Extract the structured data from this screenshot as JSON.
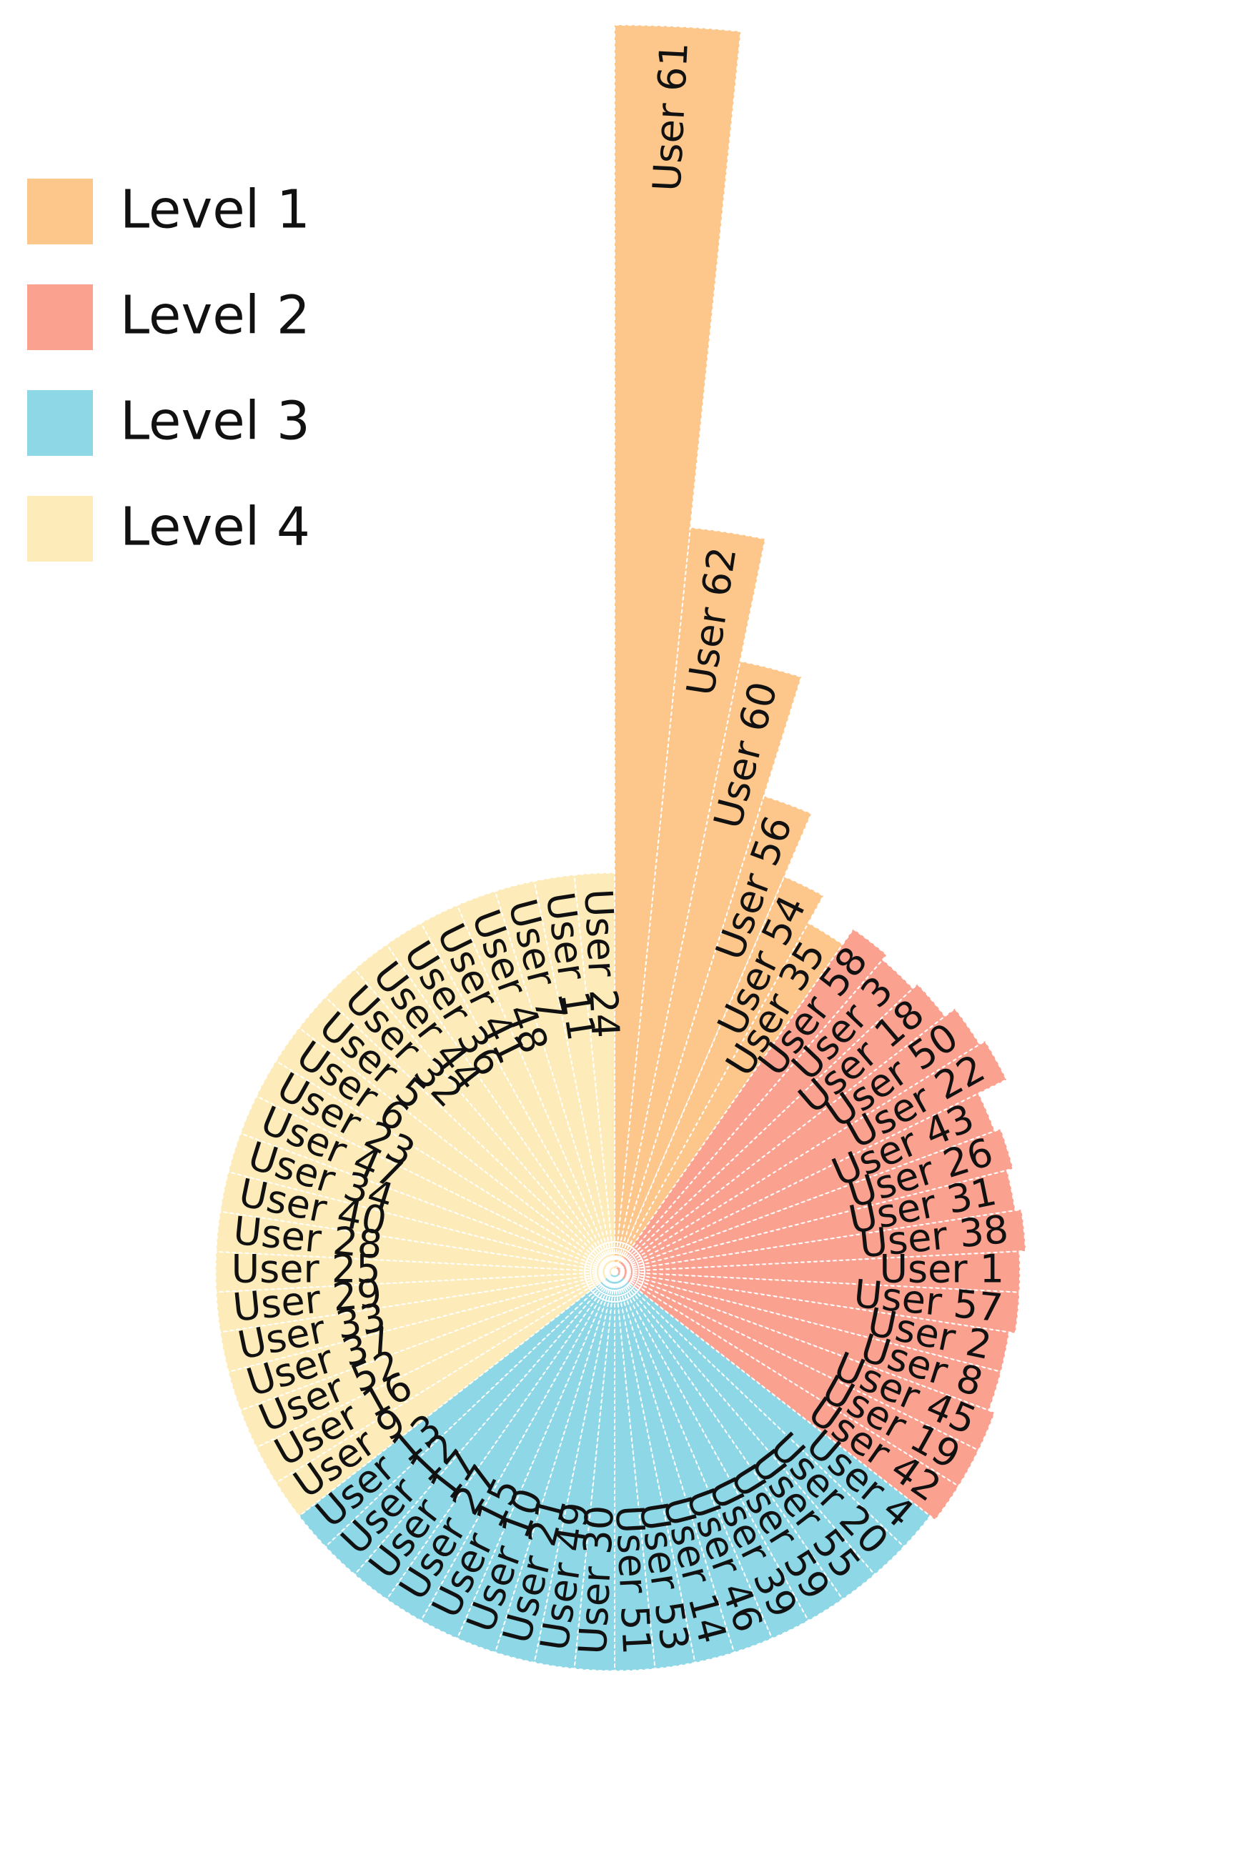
{
  "chart_data": {
    "type": "radial-bar",
    "title": "",
    "legend": {
      "placement": "top-left",
      "entries": [
        {
          "name": "Level 1",
          "color": "#FDC68A"
        },
        {
          "name": "Level 2",
          "color": "#FBA190"
        },
        {
          "name": "Level 3",
          "color": "#8DD7E6"
        },
        {
          "name": "Level 4",
          "color": "#FDECB9"
        }
      ]
    },
    "bars": [
      {
        "label": "User 61",
        "value": 1.0,
        "level": 1
      },
      {
        "label": "User 62",
        "value": 0.6,
        "level": 1
      },
      {
        "label": "User 60",
        "value": 0.5,
        "level": 1
      },
      {
        "label": "User 56",
        "value": 0.4,
        "level": 1
      },
      {
        "label": "User 54",
        "value": 0.345,
        "level": 1
      },
      {
        "label": "User 35",
        "value": 0.32,
        "level": 1
      },
      {
        "label": "User 58",
        "value": 0.335,
        "level": 2
      },
      {
        "label": "User 3",
        "value": 0.33,
        "level": 2
      },
      {
        "label": "User 18",
        "value": 0.335,
        "level": 2
      },
      {
        "label": "User 50",
        "value": 0.345,
        "level": 2
      },
      {
        "label": "User 22",
        "value": 0.35,
        "level": 2
      },
      {
        "label": "User 43",
        "value": 0.325,
        "level": 2
      },
      {
        "label": "User 26",
        "value": 0.33,
        "level": 2
      },
      {
        "label": "User 31",
        "value": 0.325,
        "level": 2
      },
      {
        "label": "User 38",
        "value": 0.33,
        "level": 2
      },
      {
        "label": "User 1",
        "value": 0.325,
        "level": 2
      },
      {
        "label": "User 57",
        "value": 0.325,
        "level": 2
      },
      {
        "label": "User 2",
        "value": 0.32,
        "level": 2
      },
      {
        "label": "User 8",
        "value": 0.32,
        "level": 2
      },
      {
        "label": "User 45",
        "value": 0.325,
        "level": 2
      },
      {
        "label": "User 19",
        "value": 0.325,
        "level": 2
      },
      {
        "label": "User 42",
        "value": 0.325,
        "level": 2
      },
      {
        "label": "User 4",
        "value": 0.32,
        "level": 3
      },
      {
        "label": "User 20",
        "value": 0.32,
        "level": 3
      },
      {
        "label": "User 55",
        "value": 0.32,
        "level": 3
      },
      {
        "label": "User 59",
        "value": 0.32,
        "level": 3
      },
      {
        "label": "User 39",
        "value": 0.32,
        "level": 3
      },
      {
        "label": "User 46",
        "value": 0.32,
        "level": 3
      },
      {
        "label": "User 14",
        "value": 0.32,
        "level": 3
      },
      {
        "label": "User 53",
        "value": 0.32,
        "level": 3
      },
      {
        "label": "User 51",
        "value": 0.32,
        "level": 3
      },
      {
        "label": "User 30",
        "value": 0.32,
        "level": 3
      },
      {
        "label": "User 49",
        "value": 0.32,
        "level": 3
      },
      {
        "label": "User 21",
        "value": 0.32,
        "level": 3
      },
      {
        "label": "User 10",
        "value": 0.32,
        "level": 3
      },
      {
        "label": "User 15",
        "value": 0.32,
        "level": 3
      },
      {
        "label": "User 27",
        "value": 0.32,
        "level": 3
      },
      {
        "label": "User 17",
        "value": 0.32,
        "level": 3
      },
      {
        "label": "User 12",
        "value": 0.32,
        "level": 3
      },
      {
        "label": "User 13",
        "value": 0.32,
        "level": 3
      },
      {
        "label": "User 9",
        "value": 0.32,
        "level": 4
      },
      {
        "label": "User 16",
        "value": 0.32,
        "level": 4
      },
      {
        "label": "User 52",
        "value": 0.32,
        "level": 4
      },
      {
        "label": "User 37",
        "value": 0.32,
        "level": 4
      },
      {
        "label": "User 33",
        "value": 0.32,
        "level": 4
      },
      {
        "label": "User 29",
        "value": 0.32,
        "level": 4
      },
      {
        "label": "User 25",
        "value": 0.32,
        "level": 4
      },
      {
        "label": "User 28",
        "value": 0.32,
        "level": 4
      },
      {
        "label": "User 40",
        "value": 0.32,
        "level": 4
      },
      {
        "label": "User 34",
        "value": 0.32,
        "level": 4
      },
      {
        "label": "User 47",
        "value": 0.32,
        "level": 4
      },
      {
        "label": "User 23",
        "value": 0.32,
        "level": 4
      },
      {
        "label": "User 6",
        "value": 0.32,
        "level": 4
      },
      {
        "label": "User 5",
        "value": 0.32,
        "level": 4
      },
      {
        "label": "User 32",
        "value": 0.32,
        "level": 4
      },
      {
        "label": "User 44",
        "value": 0.32,
        "level": 4
      },
      {
        "label": "User 36",
        "value": 0.32,
        "level": 4
      },
      {
        "label": "User 41",
        "value": 0.32,
        "level": 4
      },
      {
        "label": "User 48",
        "value": 0.32,
        "level": 4
      },
      {
        "label": "User 7",
        "value": 0.32,
        "level": 4
      },
      {
        "label": "User 11",
        "value": 0.32,
        "level": 4
      },
      {
        "label": "User 24",
        "value": 0.32,
        "level": 4
      }
    ],
    "grid": false
  }
}
